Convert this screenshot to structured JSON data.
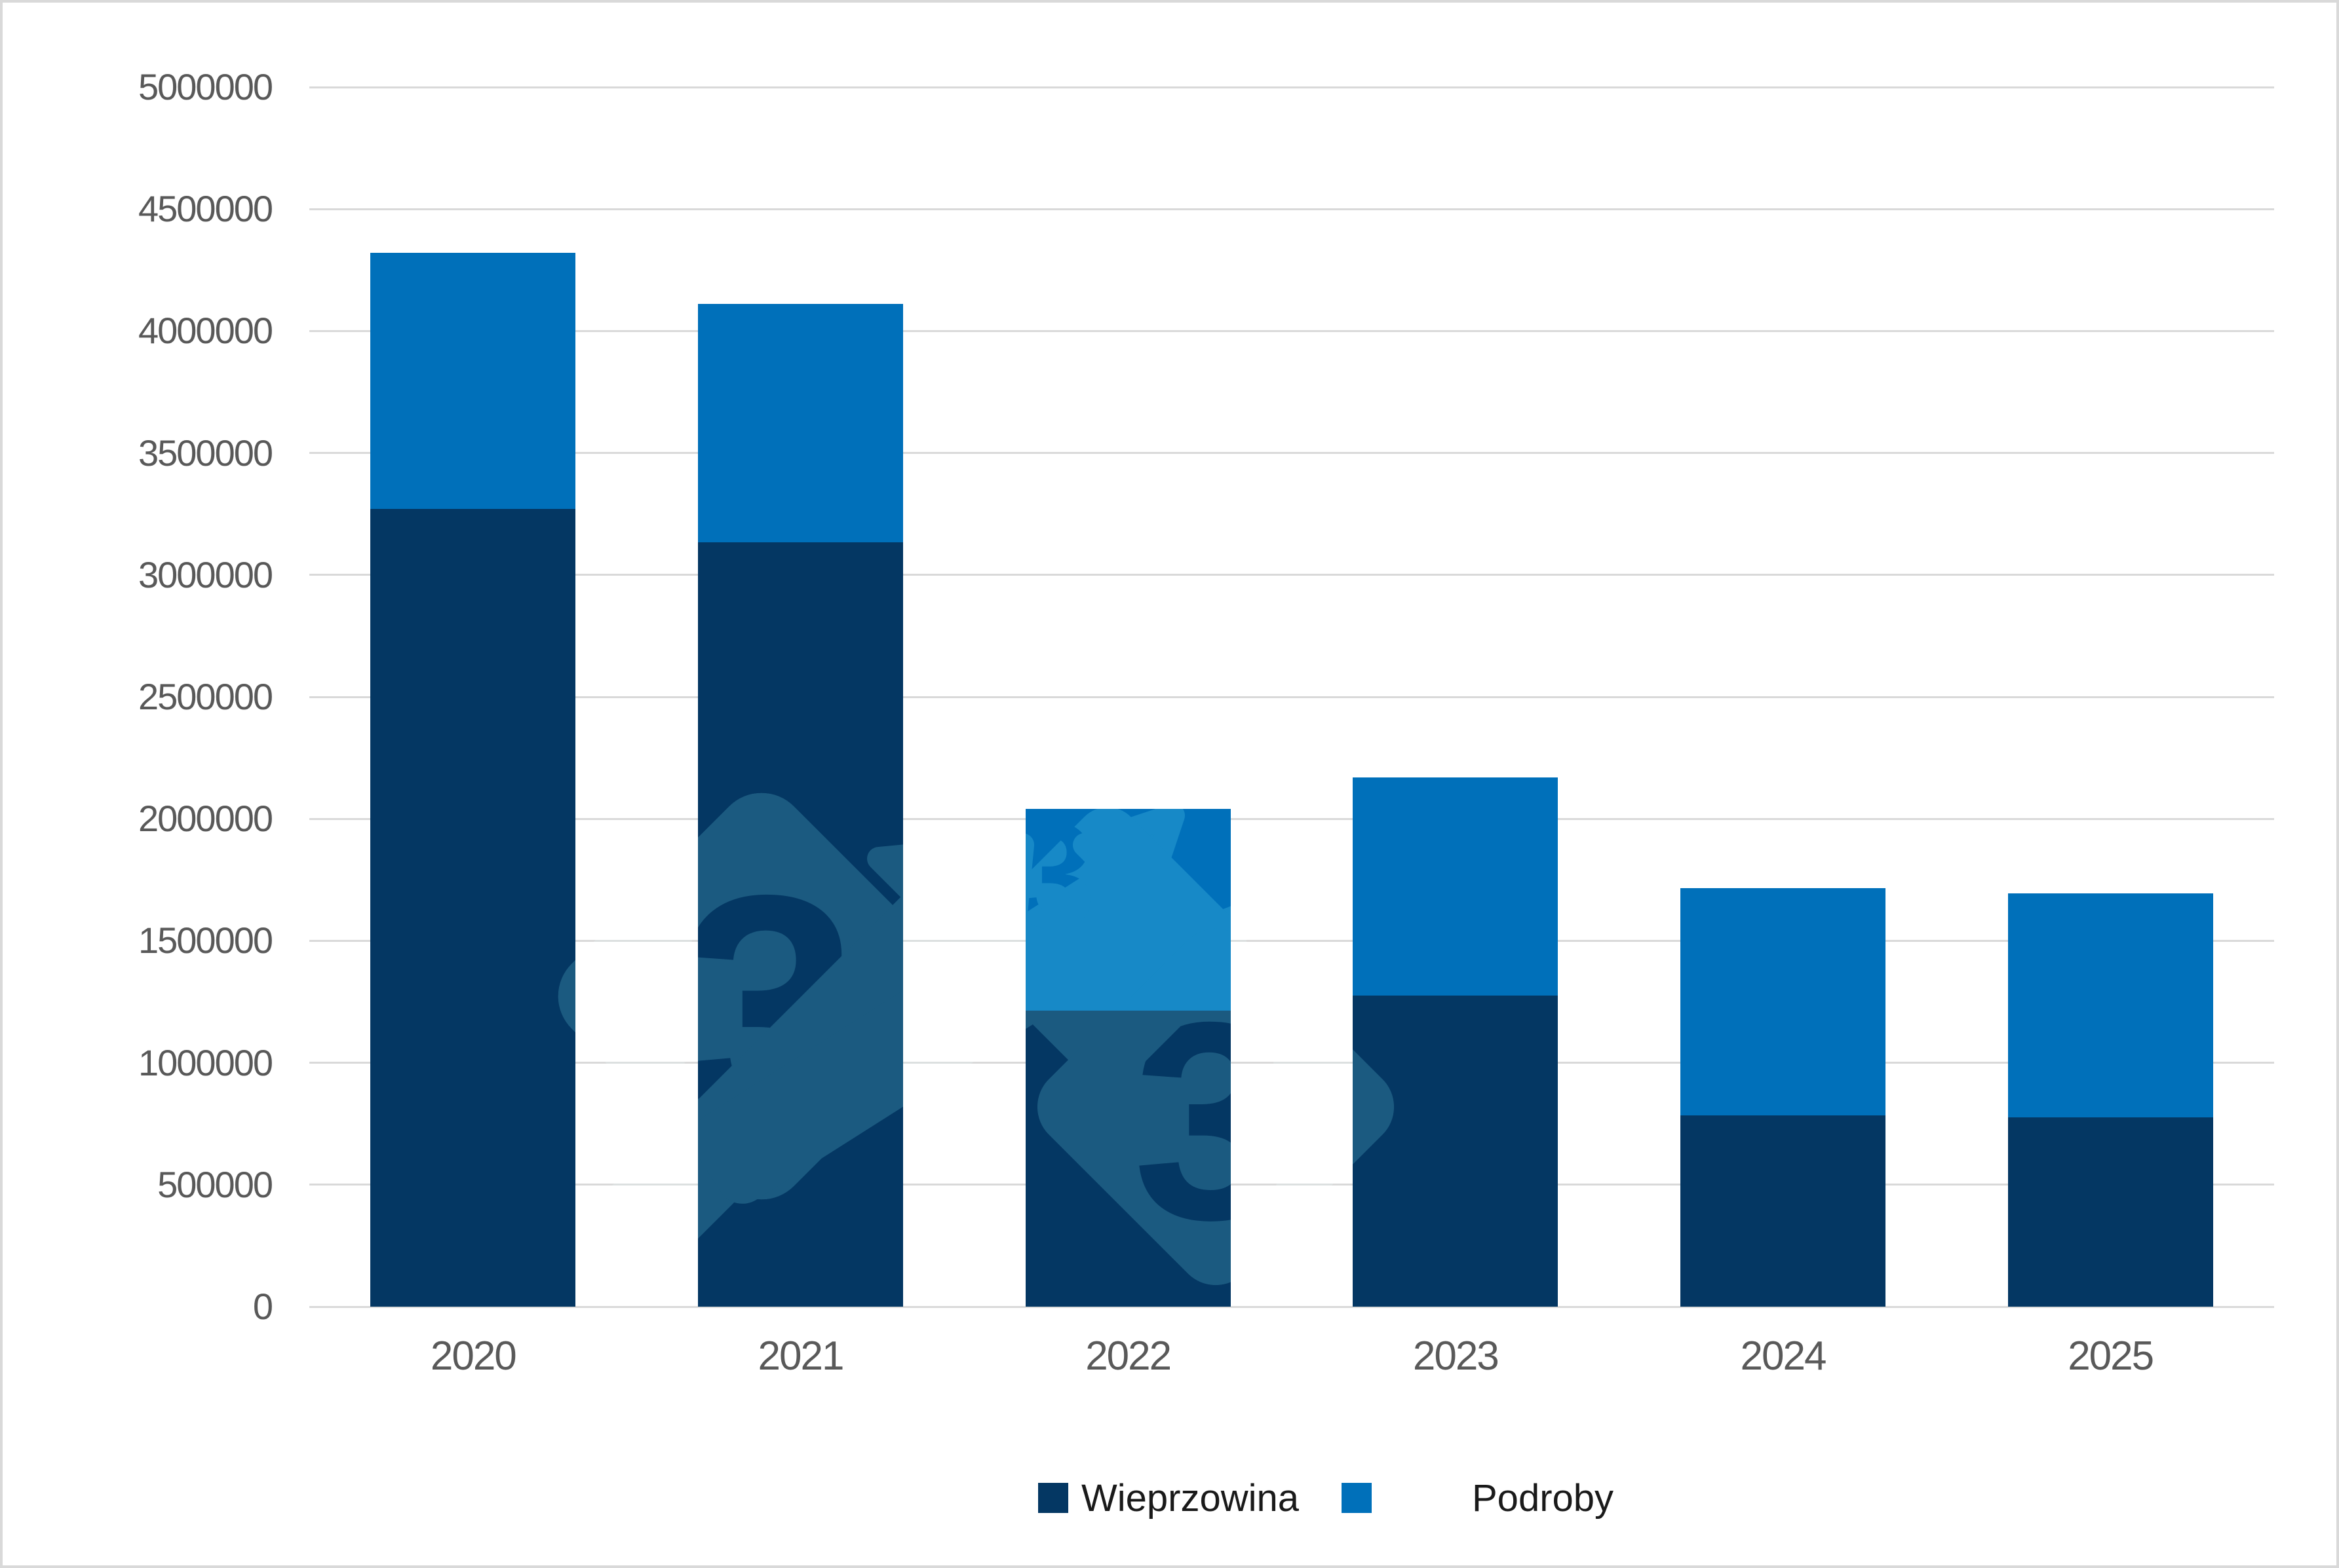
{
  "chart_data": {
    "type": "bar",
    "stacked": true,
    "title": "",
    "xlabel": "",
    "ylabel": "",
    "categories": [
      "2020",
      "2021",
      "2022",
      "2023",
      "2024",
      "2025"
    ],
    "series": [
      {
        "name": "Wieprzowina",
        "color": "#043763",
        "values": [
          3270000,
          3135000,
          1215000,
          1275000,
          785000,
          775000
        ]
      },
      {
        "name": "Podroby",
        "color": "#0070BA",
        "values": [
          1050000,
          975000,
          825000,
          895000,
          930000,
          920000
        ]
      }
    ],
    "totals": [
      4320000,
      4110000,
      2040000,
      2170000,
      1715000,
      1695000
    ],
    "ylim": [
      0,
      5000000
    ],
    "y_tick_step": 500000,
    "y_ticks": [
      "0",
      "500000",
      "1000000",
      "1500000",
      "2000000",
      "2500000",
      "3000000",
      "3500000",
      "4000000",
      "4500000",
      "5000000"
    ],
    "grid": true,
    "legend_position": "bottom"
  },
  "watermark": {
    "glyph": "3"
  },
  "colors": {
    "background": "#ffffff",
    "gridline": "#d9d9d9",
    "axis_text": "#595959",
    "legend_text": "#1a1a1a",
    "series_dark": "#043763",
    "series_light": "#0070BA"
  }
}
